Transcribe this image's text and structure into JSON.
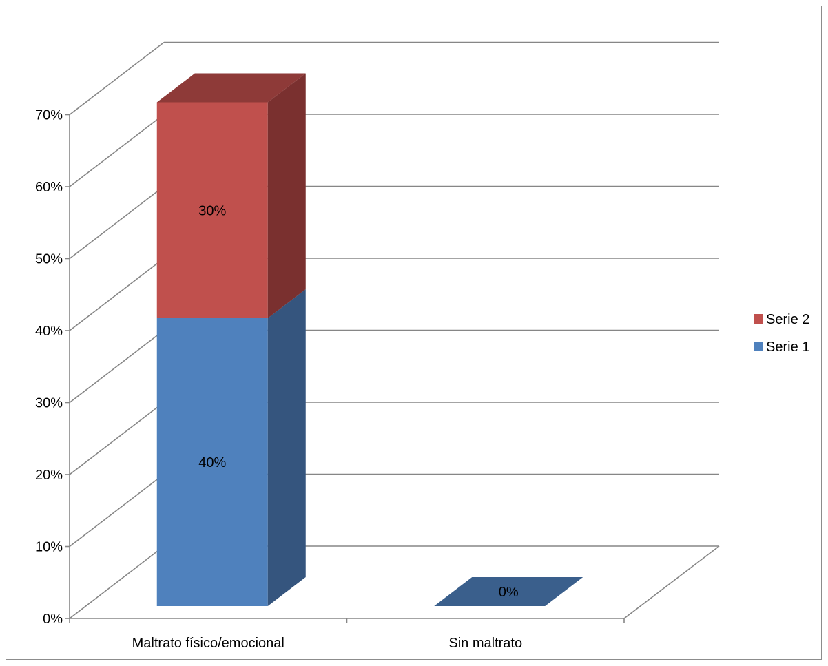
{
  "chart_data": {
    "type": "bar",
    "stacked": true,
    "three_d": true,
    "categories": [
      "Maltrato físico/emocional",
      "Sin maltrato"
    ],
    "series": [
      {
        "name": "Serie 1",
        "values": [
          40,
          0
        ],
        "labels": [
          "40%",
          "0%"
        ],
        "color": "#4F81BD",
        "side_color": "#35557E",
        "top_color": "#3A5F8C"
      },
      {
        "name": "Serie 2",
        "values": [
          30,
          null
        ],
        "labels": [
          "30%",
          ""
        ],
        "color": "#C0504D",
        "side_color": "#7A302F",
        "top_color": "#8E3A38"
      }
    ],
    "ylim": [
      0,
      70
    ],
    "yticks": [
      0,
      10,
      20,
      30,
      40,
      50,
      60,
      70
    ],
    "ytick_labels": [
      "0%",
      "10%",
      "20%",
      "30%",
      "40%",
      "50%",
      "60%",
      "70%"
    ],
    "grid": true,
    "legend_position": "right",
    "legend_order": [
      "Serie 2",
      "Serie 1"
    ],
    "title": "",
    "xlabel": "",
    "ylabel": "",
    "grid_color": "#868686"
  }
}
